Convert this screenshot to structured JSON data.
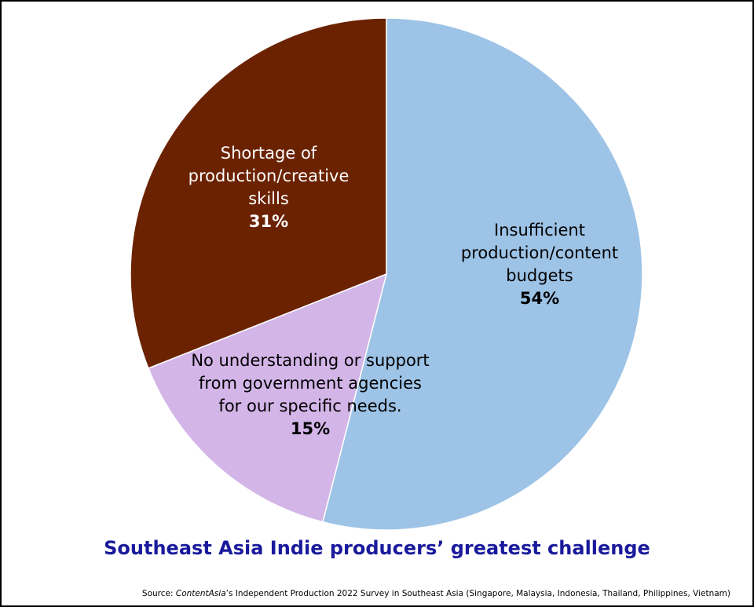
{
  "chart_data": {
    "type": "pie",
    "title": "Southeast Asia Indie producers’ greatest challenge",
    "slices": [
      {
        "label_lines": [
          "Insufficient",
          "production/content",
          "budgets"
        ],
        "value": 54,
        "value_label": "54%",
        "color": "#9dc3e6"
      },
      {
        "label_lines": [
          "No understanding or support",
          "from government agencies",
          "for our specific needs."
        ],
        "value": 15,
        "value_label": "15%",
        "color": "#d3b5e8"
      },
      {
        "label_lines": [
          "Shortage of",
          "production/creative",
          "skills"
        ],
        "value": 31,
        "value_label": "31%",
        "color": "#6b2200"
      }
    ],
    "label_colors": [
      "#000000",
      "#000000",
      "#ffffff"
    ],
    "start_angle_deg": 0,
    "direction": "clockwise"
  },
  "source": {
    "prefix": "Source: ",
    "publisher": "ContentAsia",
    "rest": "’s Independent Production 2022 Survey in Southeast Asia (Singapore, Malaysia, Indonesia, Thailand, Philippines, Vietnam)"
  }
}
